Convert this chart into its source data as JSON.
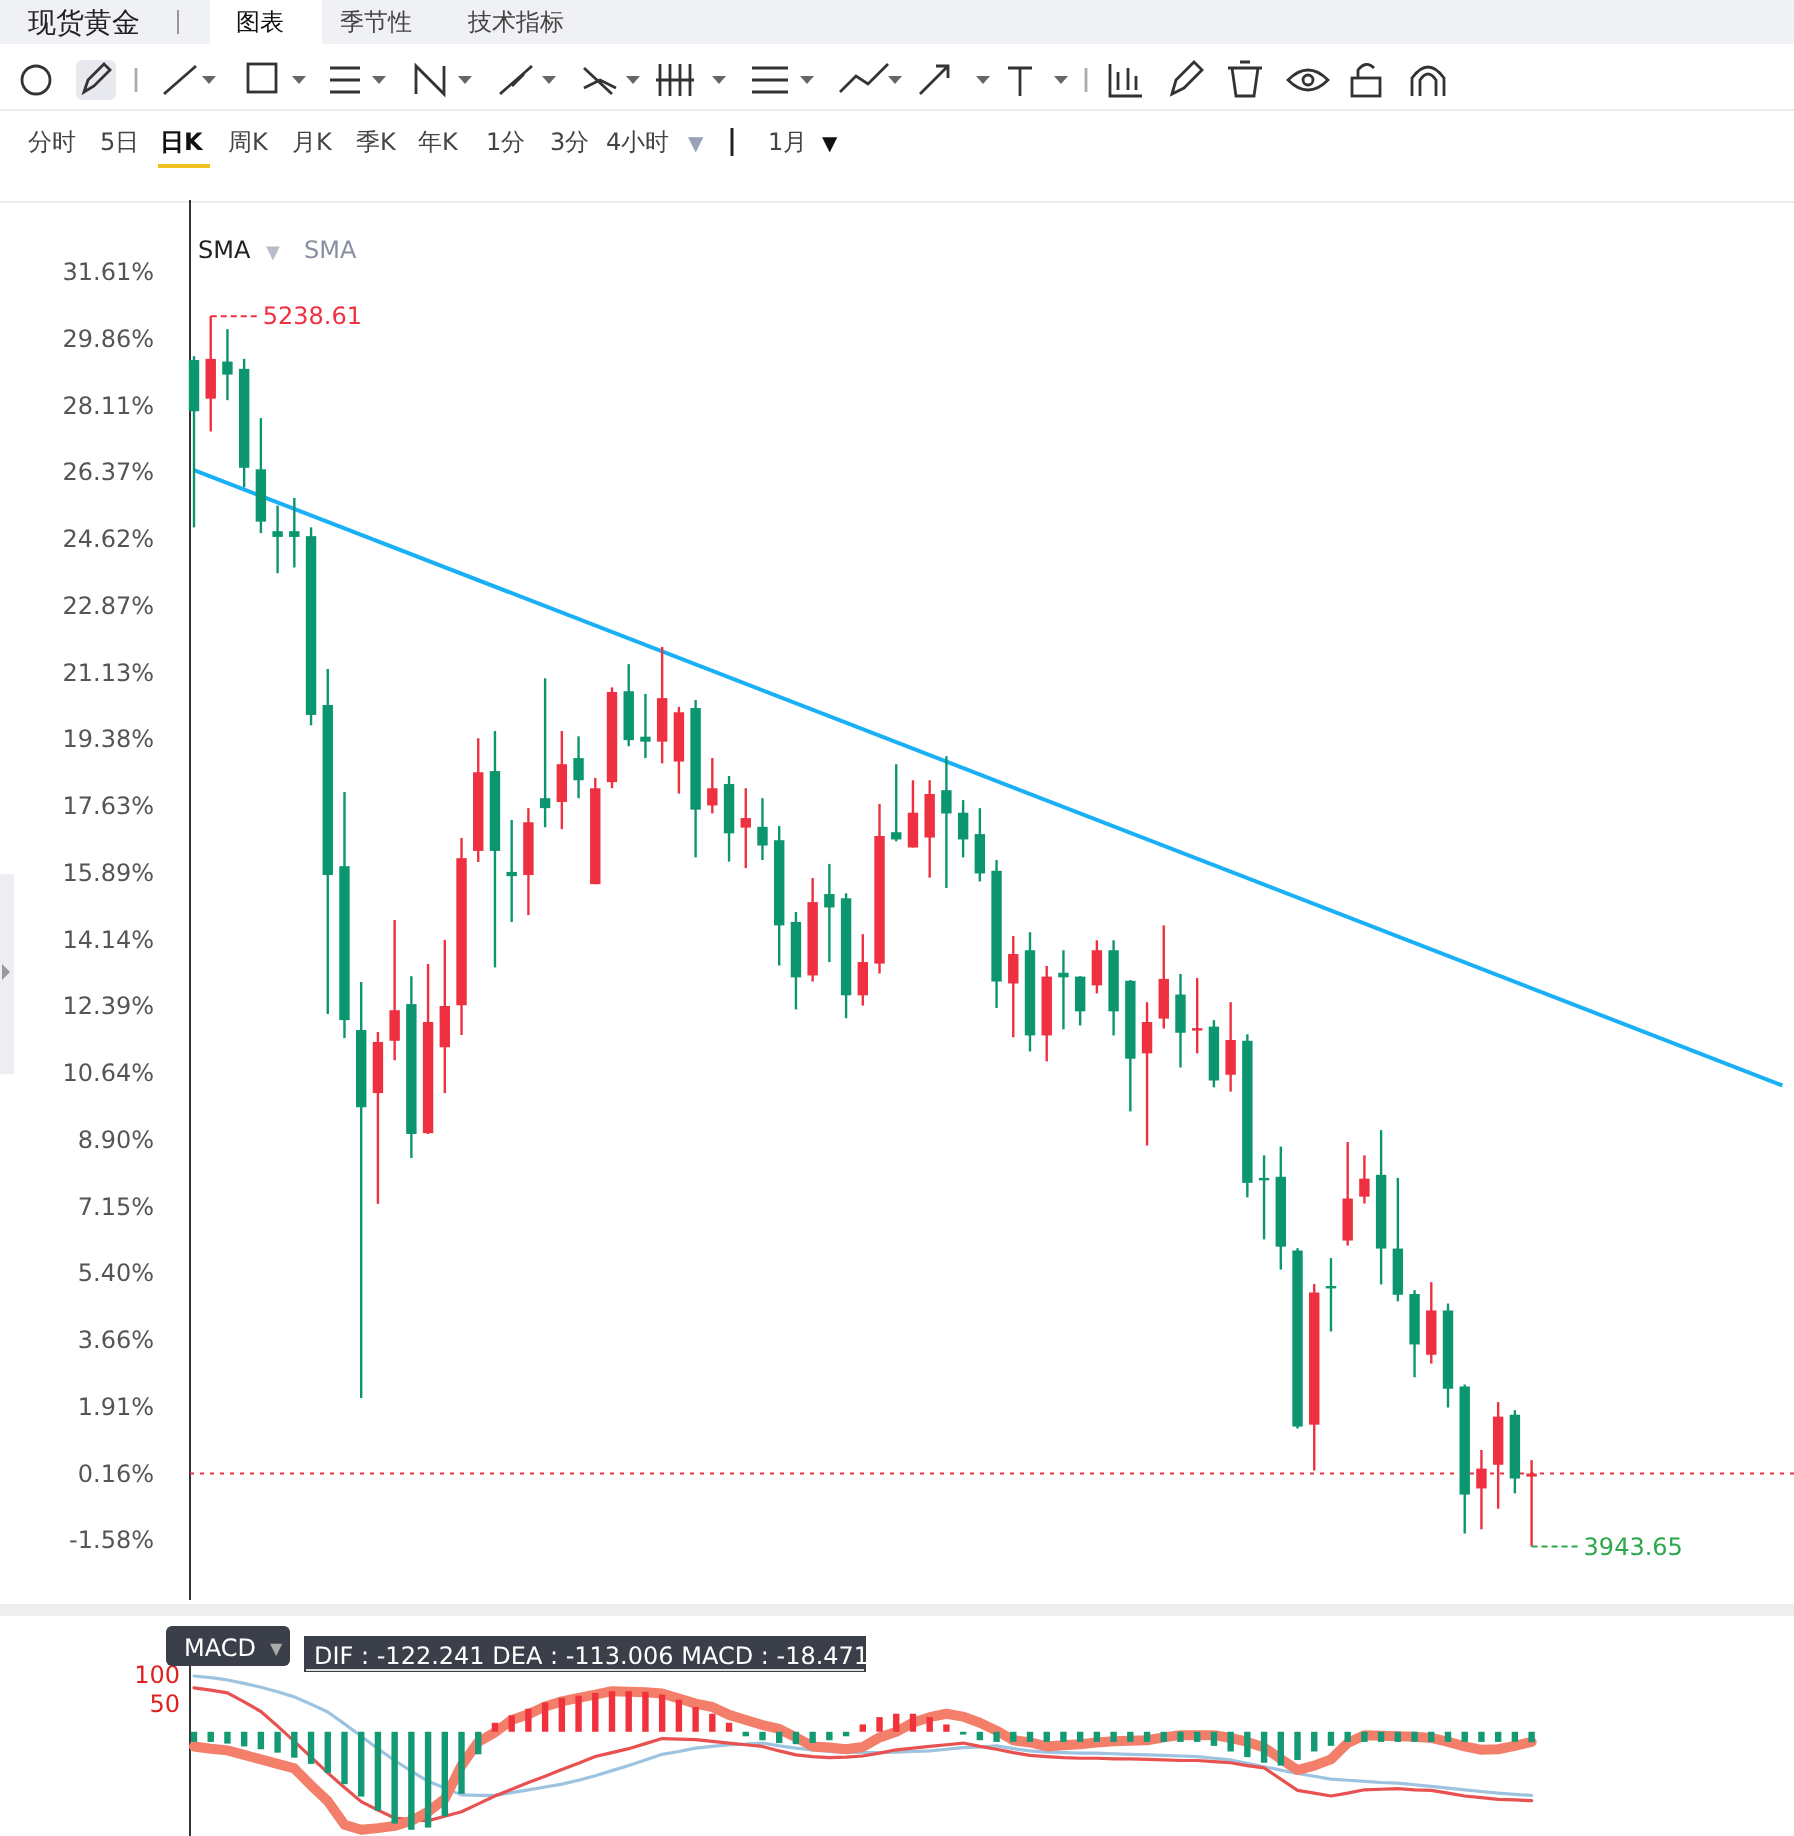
{
  "chart_data": [
    {
      "type": "other",
      "title": "现货黄金",
      "annotations": [
        "图表",
        "季节性",
        "技术指标",
        "分时",
        "5日",
        "日K",
        "周K",
        "月K",
        "季K",
        "年K",
        "1分",
        "3分",
        "4小时",
        "▼",
        "1月",
        "▼"
      ]
    },
    {
      "type": "candlestick",
      "categories": [
        null,
        null,
        null,
        null,
        null,
        null,
        null,
        null,
        null,
        null,
        null,
        null,
        null,
        null,
        null,
        null,
        null,
        null,
        null,
        null,
        null,
        null,
        null,
        null,
        null,
        null,
        null,
        null,
        null,
        null,
        null,
        null,
        null,
        null,
        null,
        null,
        null,
        null,
        null,
        null,
        null,
        null,
        null,
        null,
        null,
        null,
        null,
        null,
        null,
        null,
        null,
        null,
        null,
        null,
        null,
        null,
        null,
        null,
        null,
        null,
        null,
        null,
        null,
        null,
        null,
        null,
        null,
        null,
        null,
        null,
        null,
        null,
        null,
        null,
        null,
        null,
        null,
        null,
        null,
        null,
        null,
        null,
        null,
        null,
        null,
        null,
        null,
        null,
        null,
        null,
        null,
        null,
        null,
        null,
        null,
        null
      ],
      "ohlc": [
        [
          29.31,
          29.41,
          24.93,
          27.97
        ],
        [
          28.3,
          30.46,
          27.44,
          29.34
        ],
        [
          29.27,
          30.12,
          28.26,
          28.93
        ],
        [
          29.08,
          29.34,
          25.98,
          26.49
        ],
        [
          26.45,
          27.79,
          24.78,
          25.08
        ],
        [
          24.83,
          25.5,
          23.73,
          24.68
        ],
        [
          24.83,
          25.7,
          23.88,
          24.68
        ],
        [
          24.7,
          24.93,
          19.75,
          20.02
        ],
        [
          20.28,
          21.22,
          12.19,
          15.83
        ],
        [
          16.06,
          18.0,
          11.56,
          12.03
        ],
        [
          11.77,
          13.03,
          2.14,
          9.75
        ],
        [
          10.12,
          11.72,
          7.22,
          11.46
        ],
        [
          11.49,
          14.65,
          10.98,
          12.29
        ],
        [
          12.45,
          13.18,
          8.42,
          9.05
        ],
        [
          9.07,
          13.5,
          9.05,
          11.98
        ],
        [
          11.32,
          14.13,
          10.12,
          12.4
        ],
        [
          12.42,
          16.8,
          11.64,
          16.27
        ],
        [
          16.46,
          19.41,
          16.17,
          18.52
        ],
        [
          18.55,
          19.6,
          13.41,
          16.46
        ],
        [
          15.91,
          17.27,
          14.6,
          15.8
        ],
        [
          15.83,
          17.58,
          14.78,
          17.21
        ],
        [
          17.84,
          20.98,
          17.08,
          17.58
        ],
        [
          17.74,
          19.6,
          17.03,
          18.73
        ],
        [
          18.89,
          19.46,
          17.84,
          18.31
        ],
        [
          15.59,
          18.37,
          15.59,
          18.1
        ],
        [
          18.26,
          20.74,
          18.1,
          20.62
        ],
        [
          20.64,
          21.35,
          19.2,
          19.36
        ],
        [
          19.45,
          20.57,
          18.89,
          19.32
        ],
        [
          19.32,
          21.8,
          18.75,
          20.46
        ],
        [
          18.8,
          20.23,
          17.96,
          20.09
        ],
        [
          20.2,
          20.41,
          16.29,
          17.54
        ],
        [
          17.65,
          18.89,
          17.44,
          18.1
        ],
        [
          18.21,
          18.42,
          16.18,
          16.92
        ],
        [
          17.07,
          18.1,
          16.01,
          17.32
        ],
        [
          17.09,
          17.84,
          16.22,
          16.6
        ],
        [
          16.74,
          17.11,
          13.46,
          14.51
        ],
        [
          14.6,
          14.86,
          12.31,
          13.15
        ],
        [
          13.2,
          15.75,
          13.04,
          15.12
        ],
        [
          15.33,
          16.12,
          13.55,
          14.98
        ],
        [
          15.22,
          15.35,
          12.08,
          12.68
        ],
        [
          12.68,
          14.28,
          12.41,
          13.55
        ],
        [
          13.51,
          17.69,
          13.25,
          16.85
        ],
        [
          16.95,
          18.73,
          16.71,
          16.76
        ],
        [
          16.55,
          18.31,
          16.55,
          17.46
        ],
        [
          16.81,
          18.31,
          15.76,
          17.95
        ],
        [
          18.05,
          18.94,
          15.49,
          17.44
        ],
        [
          17.46,
          17.79,
          16.29,
          16.76
        ],
        [
          16.9,
          17.58,
          15.66,
          15.87
        ],
        [
          15.94,
          16.22,
          12.35,
          13.04
        ],
        [
          12.99,
          14.23,
          11.58,
          13.76
        ],
        [
          13.86,
          14.33,
          11.21,
          11.63
        ],
        [
          11.63,
          13.45,
          10.95,
          13.17
        ],
        [
          13.27,
          13.86,
          11.79,
          13.15
        ],
        [
          13.17,
          13.18,
          11.89,
          12.26
        ],
        [
          12.94,
          14.12,
          12.73,
          13.86
        ],
        [
          13.86,
          14.12,
          11.63,
          12.26
        ],
        [
          13.06,
          13.08,
          9.64,
          11.02
        ],
        [
          11.16,
          12.5,
          8.75,
          11.98
        ],
        [
          12.07,
          14.51,
          11.81,
          13.11
        ],
        [
          12.7,
          13.24,
          10.79,
          11.7
        ],
        [
          11.79,
          13.13,
          11.16,
          11.82
        ],
        [
          11.86,
          12.03,
          10.27,
          10.45
        ],
        [
          10.6,
          12.5,
          10.16,
          11.51
        ],
        [
          11.49,
          11.66,
          7.39,
          7.77
        ],
        [
          7.9,
          8.49,
          6.29,
          7.84
        ],
        [
          7.93,
          8.72,
          5.5,
          6.1
        ],
        [
          6.0,
          6.06,
          1.34,
          1.39
        ],
        [
          1.44,
          5.12,
          0.24,
          4.9
        ],
        [
          5.07,
          5.8,
          3.88,
          5.03
        ],
        [
          6.26,
          8.84,
          6.13,
          7.36
        ],
        [
          7.41,
          8.49,
          7.23,
          7.88
        ],
        [
          7.98,
          9.15,
          5.11,
          6.05
        ],
        [
          6.05,
          7.9,
          4.67,
          4.84
        ],
        [
          4.86,
          4.96,
          2.68,
          3.54
        ],
        [
          3.27,
          5.17,
          3.04,
          4.43
        ],
        [
          4.43,
          4.61,
          1.89,
          2.38
        ],
        [
          2.44,
          2.49,
          -1.41,
          -0.39
        ],
        [
          -0.23,
          0.78,
          -1.3,
          0.29
        ],
        [
          0.39,
          2.03,
          -0.76,
          1.65
        ],
        [
          1.7,
          1.82,
          -0.36,
          0.03
        ],
        [
          0.08,
          0.51,
          -1.75,
          0.16
        ],
        null,
        null,
        null,
        null,
        null,
        null,
        null,
        null,
        null,
        null,
        null,
        null,
        null,
        null,
        null
      ],
      "colors": [
        "#0b9670",
        "#ee3040",
        "#0b9670",
        "#0b9670",
        "#0b9670",
        "#0b9670",
        "#0b9670",
        "#0b9670",
        "#0b9670",
        "#0b9670",
        "#0b9670",
        "#ee3040",
        "#ee3040",
        "#0b9670",
        "#ee3040",
        "#ee3040",
        "#ee3040",
        "#ee3040",
        "#0b9670",
        "#0b9670",
        "#ee3040",
        "#0b9670",
        "#ee3040",
        "#0b9670",
        "#ee3040",
        "#ee3040",
        "#0b9670",
        "#0b9670",
        "#ee3040",
        "#ee3040",
        "#0b9670",
        "#ee3040",
        "#0b9670",
        "#ee3040",
        "#0b9670",
        "#0b9670",
        "#0b9670",
        "#ee3040",
        "#0b9670",
        "#0b9670",
        "#ee3040",
        "#ee3040",
        "#0b9670",
        "#ee3040",
        "#ee3040",
        "#0b9670",
        "#0b9670",
        "#0b9670",
        "#0b9670",
        "#ee3040",
        "#0b9670",
        "#ee3040",
        "#0b9670",
        "#0b9670",
        "#ee3040",
        "#0b9670",
        "#0b9670",
        "#ee3040",
        "#ee3040",
        "#0b9670",
        "#ee3040",
        "#0b9670",
        "#ee3040",
        "#0b9670",
        "#0b9670",
        "#0b9670",
        "#0b9670",
        "#ee3040",
        "#0b9670",
        "#ee3040",
        "#ee3040",
        "#0b9670",
        "#0b9670",
        "#0b9670",
        "#ee3040",
        "#0b9670",
        "#0b9670",
        "#ee3040",
        "#ee3040",
        "#0b9670",
        "#ee3040",
        null,
        null,
        null,
        null,
        null,
        null,
        null,
        null,
        null,
        null,
        null,
        null,
        null,
        null,
        null
      ],
      "series": [
        {
          "type": "line",
          "color": "#1ab0f5",
          "values": [
            26.43,
            null,
            null,
            null,
            null,
            null,
            null,
            null,
            null,
            null,
            null,
            null,
            null,
            null,
            null,
            null,
            null,
            null,
            null,
            null,
            null,
            null,
            null,
            null,
            null,
            null,
            null,
            null,
            null,
            null,
            null,
            null,
            null,
            null,
            null,
            null,
            null,
            null,
            null,
            null,
            null,
            null,
            null,
            null,
            null,
            null,
            null,
            null,
            null,
            null,
            null,
            null,
            null,
            null,
            null,
            null,
            null,
            null,
            null,
            null,
            null,
            null,
            null,
            null,
            null,
            null,
            null,
            null,
            null,
            null,
            null,
            null,
            null,
            null,
            null,
            null,
            null,
            null,
            null,
            null,
            null,
            null,
            null,
            null,
            null,
            null,
            null,
            null,
            null,
            null,
            null,
            null,
            null,
            null,
            null,
            10.32
          ]
        }
      ],
      "ylim": [
        -3.15,
        33.5
      ],
      "yticks": [
        {
          "value": 31.61,
          "label": "31.61%"
        },
        {
          "value": 29.86,
          "label": "29.86%"
        },
        {
          "value": 28.11,
          "label": "28.11%"
        },
        {
          "value": 26.37,
          "label": "26.37%"
        },
        {
          "value": 24.62,
          "label": "24.62%"
        },
        {
          "value": 22.87,
          "label": "22.87%"
        },
        {
          "value": 21.13,
          "label": "21.13%"
        },
        {
          "value": 19.38,
          "label": "19.38%"
        },
        {
          "value": 17.63,
          "label": "17.63%"
        },
        {
          "value": 15.89,
          "label": "15.89%"
        },
        {
          "value": 14.14,
          "label": "14.14%"
        },
        {
          "value": 12.39,
          "label": "12.39%"
        },
        {
          "value": 10.64,
          "label": "10.64%"
        },
        {
          "value": 8.9,
          "label": "8.90%"
        },
        {
          "value": 7.15,
          "label": "7.15%"
        },
        {
          "value": 5.4,
          "label": "5.40%"
        },
        {
          "value": 3.66,
          "label": "3.66%"
        },
        {
          "value": 1.91,
          "label": "1.91%"
        },
        {
          "value": 0.16,
          "label": "0.16%"
        },
        {
          "value": -1.58,
          "label": "-1.58%"
        }
      ],
      "ref_lines": [
        {
          "axis": "y",
          "value": 0.16,
          "color": "#ee3040",
          "line_style": "dotted"
        }
      ],
      "annotations": [
        "5238.61",
        "3943.65",
        "SMA",
        "▼",
        "SMA"
      ]
    },
    {
      "type": "bar",
      "categories": [
        null,
        null,
        null,
        null,
        null,
        null,
        null,
        null,
        null,
        null,
        null,
        null,
        null,
        null,
        null,
        null,
        null,
        null,
        null,
        null,
        null,
        null,
        null,
        null,
        null,
        null,
        null,
        null,
        null,
        null,
        null,
        null,
        null,
        null,
        null,
        null,
        null,
        null,
        null,
        null,
        null,
        null,
        null,
        null,
        null,
        null,
        null,
        null,
        null,
        null,
        null,
        null,
        null,
        null,
        null,
        null,
        null,
        null,
        null,
        null,
        null,
        null,
        null,
        null,
        null,
        null,
        null,
        null,
        null,
        null,
        null,
        null,
        null,
        null,
        null,
        null,
        null,
        null,
        null,
        null,
        null
      ],
      "series": [
        {
          "type": "bar",
          "values": [
            -18,
            -18,
            -21,
            -26,
            -31,
            -37,
            -46,
            -57,
            -73,
            -93,
            -115,
            -140,
            -163,
            -174,
            -170,
            -150,
            -110,
            -40,
            16,
            29,
            41,
            52,
            60,
            64,
            69,
            72,
            72,
            71,
            66,
            57,
            44,
            32,
            16,
            -8,
            -15,
            -20,
            -22,
            -20,
            -15,
            -8,
            13,
            26,
            32,
            32,
            26,
            13,
            -5,
            -15,
            -18,
            -18,
            -18,
            -18,
            -18,
            -18,
            -18,
            -18,
            -18,
            -18,
            -18,
            -18,
            -18,
            -25,
            -35,
            -45,
            -55,
            -60,
            -50,
            -35,
            -25,
            -18,
            -18,
            -18,
            -18,
            -18,
            -18,
            -18,
            -18,
            -18,
            -18,
            -18,
            -18.471
          ],
          "colors": [
            "#139a75",
            "#139a75",
            "#139a75",
            "#139a75",
            "#139a75",
            "#139a75",
            "#139a75",
            "#139a75",
            "#139a75",
            "#139a75",
            "#139a75",
            "#139a75",
            "#139a75",
            "#139a75",
            "#139a75",
            "#139a75",
            "#139a75",
            "#139a75",
            "#f0323c",
            "#f0323c",
            "#f0323c",
            "#f0323c",
            "#f0323c",
            "#f0323c",
            "#f0323c",
            "#f0323c",
            "#f0323c",
            "#f0323c",
            "#f0323c",
            "#f0323c",
            "#f0323c",
            "#f0323c",
            "#f0323c",
            "#139a75",
            "#139a75",
            "#139a75",
            "#139a75",
            "#139a75",
            "#139a75",
            "#139a75",
            "#f0323c",
            "#f0323c",
            "#f0323c",
            "#f0323c",
            "#f0323c",
            "#f0323c",
            "#139a75",
            "#139a75",
            "#139a75",
            "#139a75",
            "#139a75",
            "#139a75",
            "#139a75",
            "#139a75",
            "#139a75",
            "#139a75",
            "#139a75",
            "#139a75",
            "#139a75",
            "#139a75",
            "#139a75",
            "#139a75",
            "#139a75",
            "#139a75",
            "#139a75",
            "#139a75",
            "#139a75",
            "#139a75",
            "#139a75",
            "#139a75",
            "#139a75",
            "#139a75",
            "#139a75",
            "#139a75",
            "#139a75",
            "#139a75",
            "#139a75",
            "#139a75",
            "#139a75",
            "#139a75",
            "#139a75"
          ]
        },
        {
          "type": "line",
          "color": "#9cc3e0",
          "values": [
            99,
            96,
            92,
            86,
            79,
            71,
            62,
            49,
            35,
            14,
            -8,
            -30,
            -51,
            -70,
            -88,
            -100,
            -112,
            -113,
            -113,
            -108,
            -103,
            -98,
            -93,
            -86,
            -78,
            -69,
            -60,
            -50,
            -40,
            -35,
            -29,
            -26,
            -23,
            -22,
            -20,
            -25,
            -29,
            -32,
            -35,
            -36,
            -37,
            -37,
            -36,
            -35,
            -34,
            -31,
            -28,
            -27,
            -25,
            -30,
            -34,
            -36,
            -37,
            -38,
            -38,
            -39,
            -40,
            -41,
            -42,
            -43,
            -44,
            -47,
            -50,
            -56,
            -62,
            -68,
            -74,
            -79,
            -84,
            -86,
            -88,
            -90,
            -91,
            -94,
            -97,
            -100,
            -103,
            -106,
            -109,
            -111,
            -113.006
          ]
        },
        {
          "type": "line",
          "color": "#e8514f",
          "values": [
            78,
            74,
            69,
            53,
            36,
            10,
            -17,
            -45,
            -73,
            -99,
            -124,
            -139,
            -153,
            -156,
            -158,
            -150,
            -142,
            -128,
            -114,
            -102,
            -90,
            -79,
            -67,
            -56,
            -44,
            -37,
            -30,
            -21,
            -12,
            -13,
            -14,
            -17,
            -20,
            -23,
            -26,
            -34,
            -41,
            -44,
            -46,
            -45,
            -43,
            -38,
            -32,
            -29,
            -26,
            -23,
            -20,
            -26,
            -31,
            -37,
            -42,
            -44,
            -46,
            -47,
            -47,
            -48,
            -48,
            -49,
            -50,
            -51,
            -51,
            -53,
            -55,
            -60,
            -64,
            -84,
            -104,
            -109,
            -114,
            -109,
            -103,
            -102,
            -101,
            -103,
            -104,
            -109,
            -114,
            -117,
            -120,
            -121,
            -122.241
          ]
        },
        {
          "type": "line",
          "color": "#f37f6a",
          "values": [
            -26,
            -30,
            -33,
            -41,
            -49,
            -57,
            -65,
            -95,
            -123,
            -165,
            -174,
            -171,
            -167,
            -158,
            -142,
            -119,
            -60,
            -18,
            -1,
            21,
            31,
            45,
            54,
            60,
            66,
            72,
            71,
            70,
            68,
            59,
            50,
            44,
            30,
            21,
            12,
            5,
            -10,
            -26,
            -28,
            -31,
            -27,
            -10,
            0,
            16,
            26,
            32,
            27,
            16,
            2,
            -15,
            -19,
            -26,
            -24,
            -22,
            -19,
            -17,
            -16,
            -15,
            -10,
            -6,
            -6,
            -6,
            -11,
            -18,
            -28,
            -48,
            -68,
            -60,
            -49,
            -20,
            -6,
            -7,
            -8,
            -9,
            -11,
            -18,
            -26,
            -32,
            -31,
            -25,
            -18
          ]
        }
      ],
      "ylim": [
        -185,
        170
      ],
      "yticks": [
        50,
        100
      ],
      "annotations": [
        "MACD",
        "▼",
        "DIF : -122.241   DEA : -113.006   MACD : -18.471"
      ]
    }
  ]
}
